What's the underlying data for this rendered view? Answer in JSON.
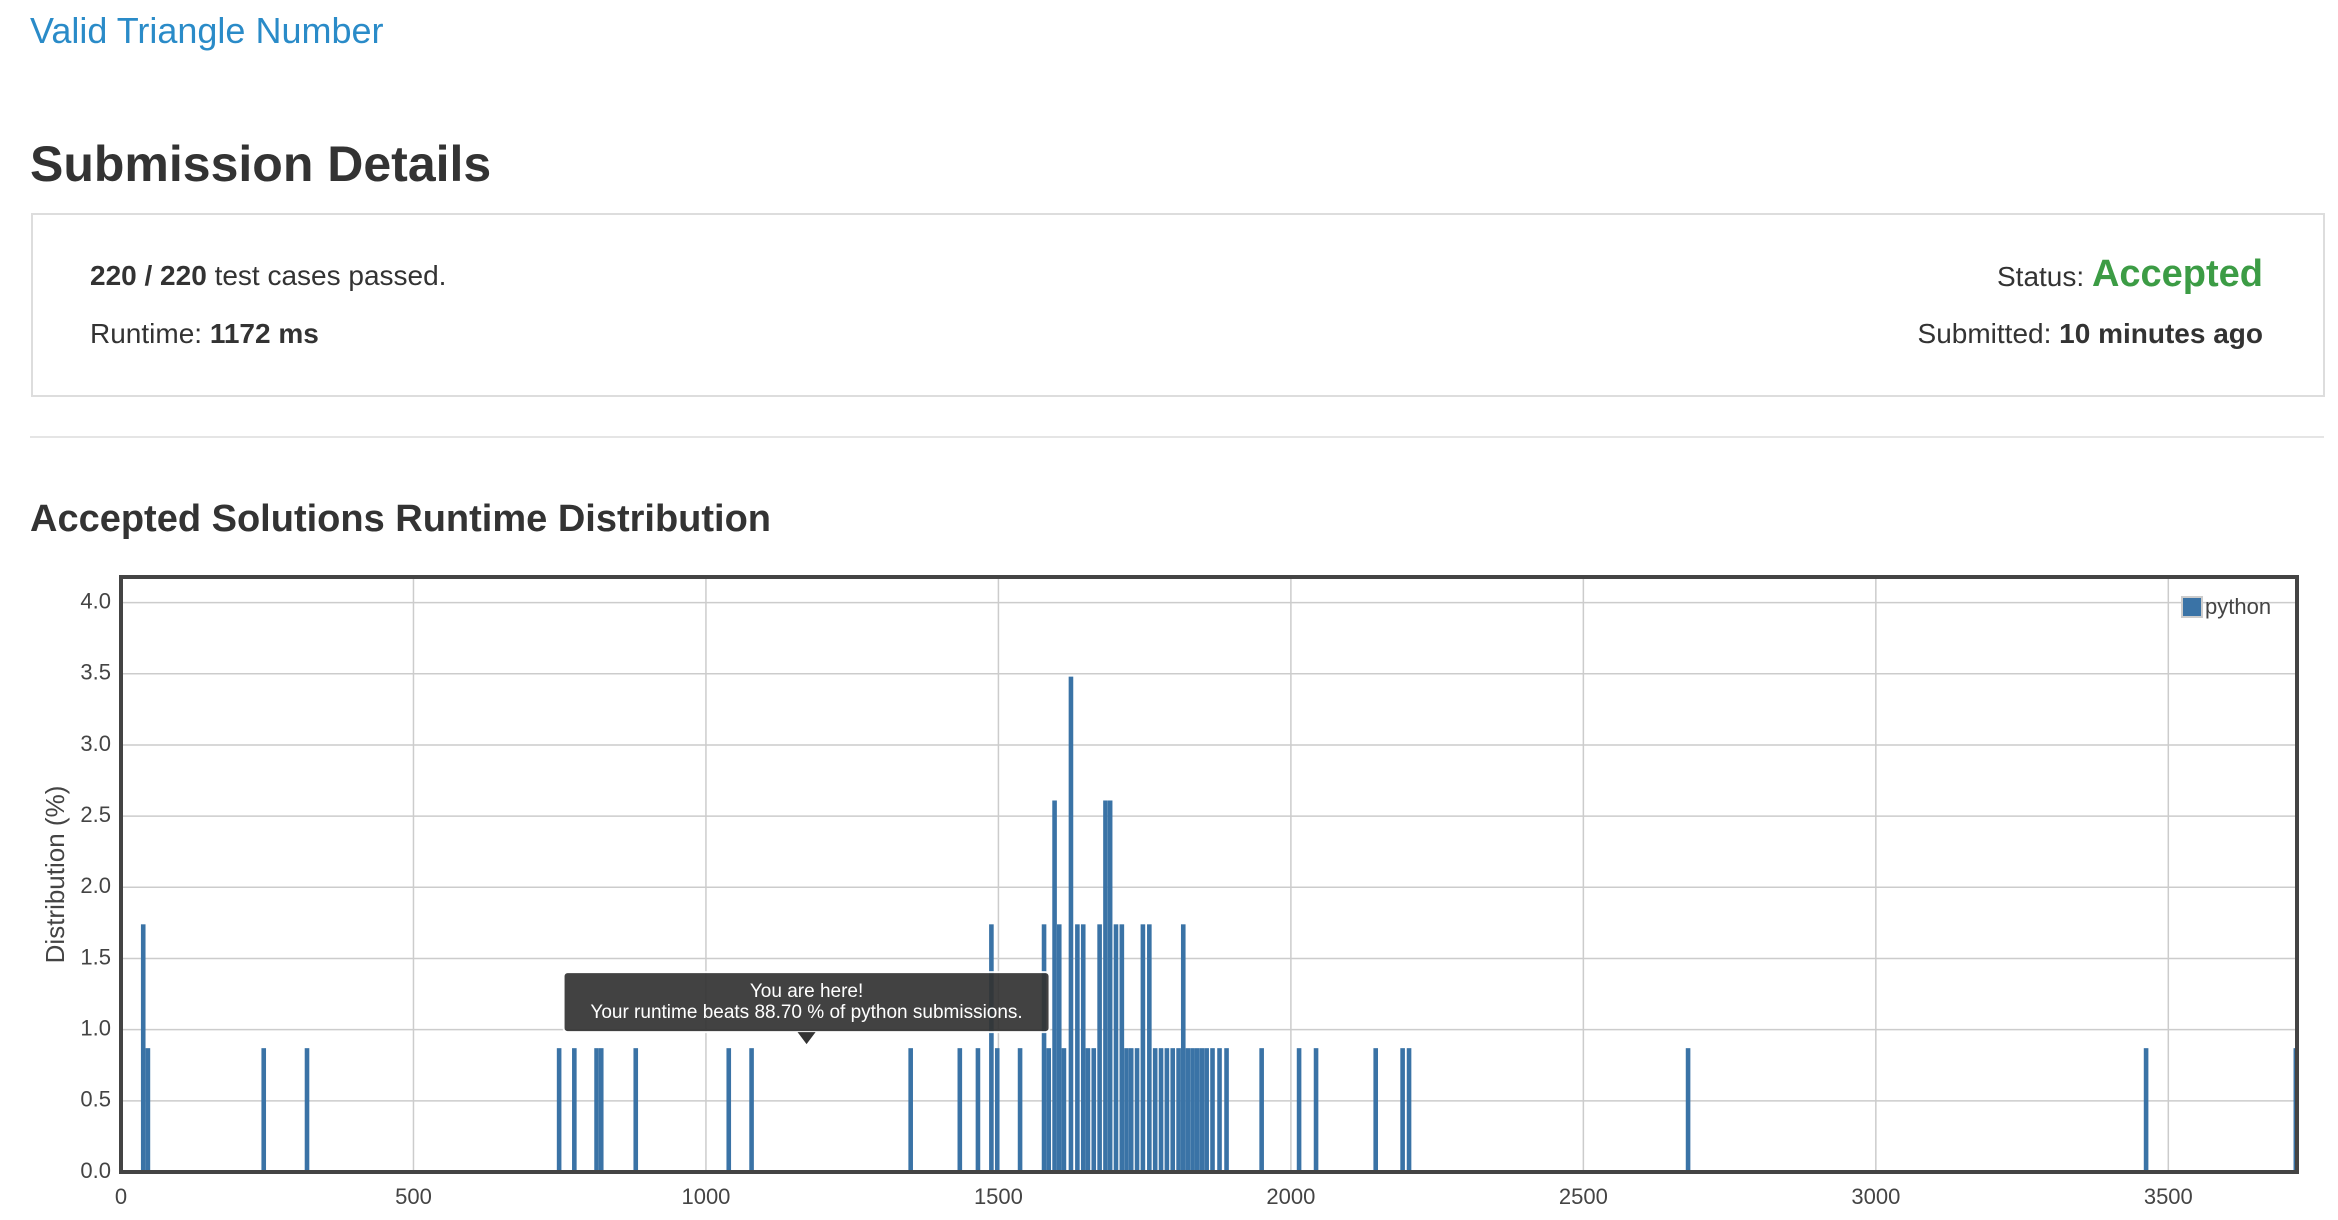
{
  "header": {
    "title": "Valid Triangle Number"
  },
  "section_title": "Submission Details",
  "details": {
    "passed": "220 / 220",
    "passed_suffix": "test cases passed.",
    "runtime_label": "Runtime:",
    "runtime": "1172 ms",
    "status_label": "Status:",
    "status": "Accepted",
    "submitted_label": "Submitted:",
    "submitted": "10 minutes ago"
  },
  "chart_data": {
    "type": "bar",
    "title": "Accepted Solutions Runtime Distribution",
    "y_label": "Distribution (%)",
    "x": [
      38,
      46,
      244,
      318,
      749,
      775,
      813,
      821,
      880,
      1039,
      1078,
      1350,
      1434,
      1465,
      1488,
      1498,
      1537,
      1578,
      1586,
      1596,
      1604,
      1612,
      1624,
      1635,
      1645,
      1653,
      1663,
      1673,
      1683,
      1691,
      1701,
      1711,
      1719,
      1727,
      1737,
      1747,
      1758,
      1768,
      1778,
      1788,
      1798,
      1808,
      1816,
      1824,
      1832,
      1840,
      1848,
      1856,
      1866,
      1878,
      1890,
      1950,
      2014,
      2043,
      2145,
      2191,
      2202,
      2679,
      3462,
      3718
    ],
    "series": [
      {
        "name": "python",
        "color": "#3a73a6",
        "values": [
          1.74,
          0.87,
          0.87,
          0.87,
          0.87,
          0.87,
          0.87,
          0.87,
          0.87,
          0.87,
          0.87,
          0.87,
          0.87,
          0.87,
          1.74,
          0.87,
          0.87,
          1.74,
          0.87,
          2.61,
          1.74,
          0.87,
          3.48,
          1.74,
          1.74,
          0.87,
          0.87,
          1.74,
          2.61,
          2.61,
          1.74,
          1.74,
          0.87,
          0.87,
          0.87,
          1.74,
          1.74,
          0.87,
          0.87,
          0.87,
          0.87,
          0.87,
          1.74,
          0.87,
          0.87,
          0.87,
          0.87,
          0.87,
          0.87,
          0.87,
          0.87,
          0.87,
          0.87,
          0.87,
          0.87,
          0.87,
          0.87,
          0.87,
          0.87,
          0.87
        ]
      }
    ],
    "xlim": [
      0,
      3720
    ],
    "ylim": [
      0,
      4.18
    ],
    "xticks": [
      0,
      500,
      1000,
      1500,
      2000,
      2500,
      3000,
      3500
    ],
    "yticks": [
      {
        "value": 0,
        "label": "0.0"
      },
      {
        "value": 0.5,
        "label": "0.5"
      },
      {
        "value": 1,
        "label": "1.0"
      },
      {
        "value": 1.5,
        "label": "1.5"
      },
      {
        "value": 2,
        "label": "2.0"
      },
      {
        "value": 2.5,
        "label": "2.5"
      },
      {
        "value": 3,
        "label": "3.0"
      },
      {
        "value": 3.5,
        "label": "3.5"
      },
      {
        "value": 4,
        "label": "4.0"
      }
    ],
    "grid": true,
    "legend": "top-right",
    "annotation": {
      "x": 1172,
      "lines": [
        "You are here!",
        "Your runtime beats 88.70 % of python submissions."
      ]
    }
  }
}
